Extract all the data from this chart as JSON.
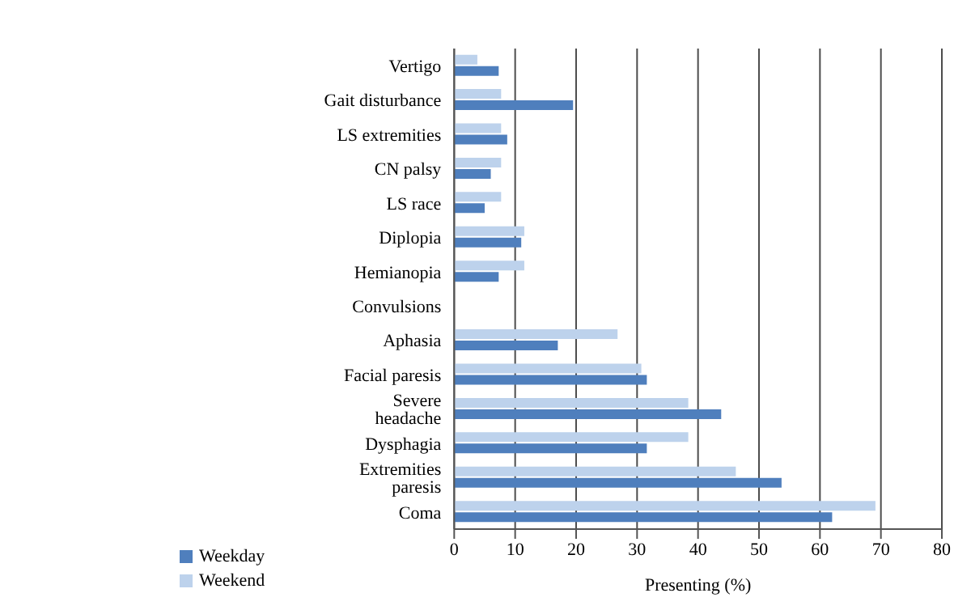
{
  "chart_data": {
    "type": "bar",
    "orientation": "horizontal",
    "xlabel": "Presenting (%)",
    "categories": [
      "Vertigo",
      "Gait disturbance",
      "LS extremities",
      "CN palsy",
      "LS race",
      "Diplopia",
      "Hemianopia",
      "Convulsions",
      "Aphasia",
      "Facial paresis",
      "Severe headache",
      "Dysphagia",
      "Extremities paresis",
      "Coma"
    ],
    "series": [
      {
        "name": "Weekend",
        "color": "#bdd2ec",
        "values": [
          3.8,
          7.7,
          7.7,
          7.7,
          7.7,
          11.5,
          11.5,
          null,
          26.8,
          30.7,
          38.4,
          38.4,
          46.2,
          69.1
        ]
      },
      {
        "name": "Weekday",
        "color": "#4f7fbd",
        "values": [
          7.3,
          19.5,
          8.7,
          6.0,
          5.0,
          11.0,
          7.3,
          null,
          17.0,
          31.6,
          43.8,
          31.6,
          53.7,
          62.0
        ]
      }
    ],
    "xlim": [
      0,
      80
    ],
    "xticks": [
      0,
      10,
      20,
      30,
      40,
      50,
      60,
      70,
      80
    ],
    "grid": "x",
    "legend": "bottom left"
  }
}
